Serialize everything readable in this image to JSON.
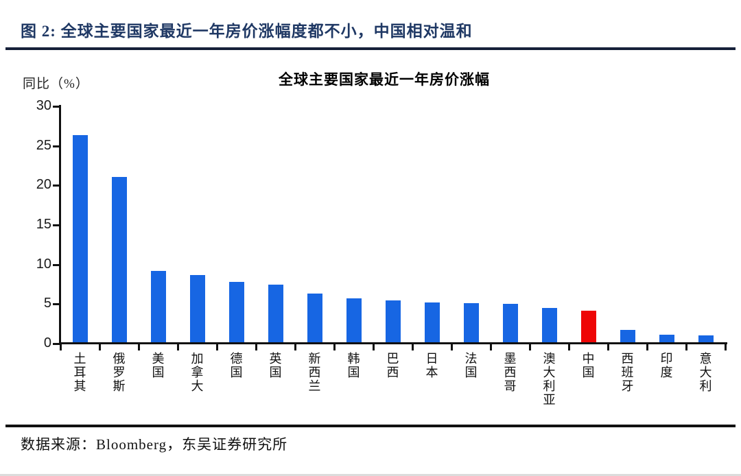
{
  "page": {
    "header_title": "图 2:  全球主要国家最近一年房价涨幅度都不小，中国相对温和",
    "source_note": "数据来源：Bloomberg，东吴证券研究所"
  },
  "colors": {
    "header_text": "#1f3864",
    "top_rule": "#16203a",
    "bottom_rule": "#111111",
    "axis": "#111111",
    "bar_blue": "#1766e3",
    "bar_red": "#ee0606"
  },
  "chart_data": {
    "type": "bar",
    "title": "全球主要国家最近一年房价涨幅",
    "xlabel": "",
    "ylabel": "同比（%）",
    "categories": [
      "土耳其",
      "俄罗斯",
      "美国",
      "加拿大",
      "德国",
      "英国",
      "新西兰",
      "韩国",
      "巴西",
      "日本",
      "法国",
      "墨西哥",
      "澳大利亚",
      "中国",
      "西班牙",
      "印度",
      "意大利"
    ],
    "values": [
      26.4,
      21.1,
      9.2,
      8.7,
      7.8,
      7.5,
      6.3,
      5.7,
      5.5,
      5.2,
      5.1,
      5.0,
      4.5,
      4.2,
      1.7,
      1.1,
      1.0
    ],
    "highlight_category": "中国",
    "highlight_index": 13,
    "ylim": [
      0,
      30
    ],
    "yticks": [
      0,
      5,
      10,
      15,
      20,
      25,
      30
    ],
    "grid": false,
    "legend_position": "none"
  }
}
